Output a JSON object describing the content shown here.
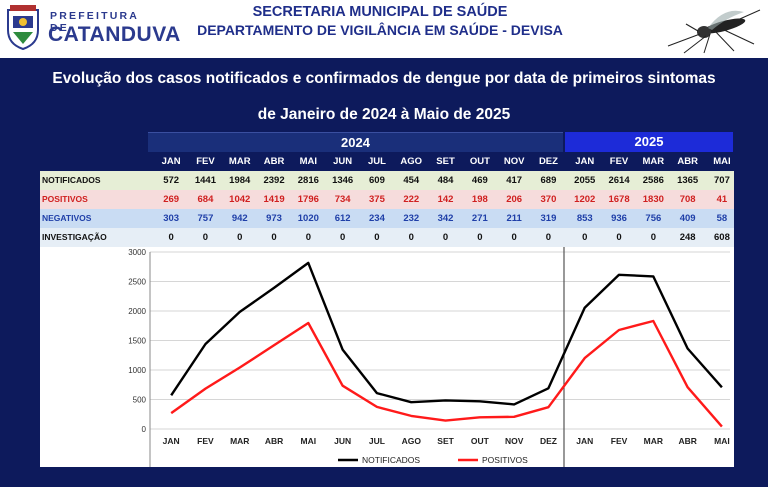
{
  "header": {
    "logo_prefix": "PREFEITURA DE",
    "logo_city": "CATANDUVA",
    "line1": "SECRETARIA MUNICIPAL DE SAÚDE",
    "line2": "DEPARTAMENTO DE VIGILÂNCIA EM SAÚDE - DEVISA"
  },
  "title_line1": "Evolução dos casos notificados e confirmados de dengue por data de primeiros sintomas",
  "title_line2": "de Janeiro de 2024 à Maio de 2025",
  "colors": {
    "panel_bg": "#0d1a5c",
    "year2024_bg": "#1a2f7a",
    "year2025_bg": "#1d2bd8",
    "notificados": "#000000",
    "positivos": "#ff1a1a",
    "negativos_text": "#1f3fa8"
  },
  "table": {
    "years": [
      "2024",
      "2025"
    ],
    "months": [
      "JAN",
      "FEV",
      "MAR",
      "ABR",
      "MAI",
      "JUN",
      "JUL",
      "AGO",
      "SET",
      "OUT",
      "NOV",
      "DEZ",
      "JAN",
      "FEV",
      "MAR",
      "ABR",
      "MAI"
    ],
    "rows": [
      {
        "label": "NOTIFICADOS",
        "values": [
          "572",
          "1441",
          "1984",
          "2392",
          "2816",
          "1346",
          "609",
          "454",
          "484",
          "469",
          "417",
          "689",
          "2055",
          "2614",
          "2586",
          "1365",
          "707"
        ]
      },
      {
        "label": "POSITIVOS",
        "values": [
          "269",
          "684",
          "1042",
          "1419",
          "1796",
          "734",
          "375",
          "222",
          "142",
          "198",
          "206",
          "370",
          "1202",
          "1678",
          "1830",
          "708",
          "41"
        ]
      },
      {
        "label": "NEGATIVOS",
        "values": [
          "303",
          "757",
          "942",
          "973",
          "1020",
          "612",
          "234",
          "232",
          "342",
          "271",
          "211",
          "319",
          "853",
          "936",
          "756",
          "409",
          "58"
        ]
      },
      {
        "label": "INVESTIGAÇÃO",
        "values": [
          "0",
          "0",
          "0",
          "0",
          "0",
          "0",
          "0",
          "0",
          "0",
          "0",
          "0",
          "0",
          "0",
          "0",
          "0",
          "248",
          "608"
        ]
      }
    ]
  },
  "chart_data": {
    "type": "line",
    "categories": [
      "JAN",
      "FEV",
      "MAR",
      "ABR",
      "MAI",
      "JUN",
      "JUL",
      "AGO",
      "SET",
      "OUT",
      "NOV",
      "DEZ",
      "JAN",
      "FEV",
      "MAR",
      "ABR",
      "MAI"
    ],
    "series": [
      {
        "name": "NOTIFICADOS",
        "color": "#000000",
        "values": [
          572,
          1441,
          1984,
          2392,
          2816,
          1346,
          609,
          454,
          484,
          469,
          417,
          689,
          2055,
          2614,
          2586,
          1365,
          707
        ]
      },
      {
        "name": "POSITIVOS",
        "color": "#ff1a1a",
        "values": [
          269,
          684,
          1042,
          1419,
          1796,
          734,
          375,
          222,
          142,
          198,
          206,
          370,
          1202,
          1678,
          1830,
          708,
          41
        ]
      }
    ],
    "yticks": [
      "3000",
      "2500",
      "2000",
      "1500",
      "1000",
      "500",
      "0"
    ],
    "ylim": [
      0,
      3000
    ],
    "grid": true,
    "legend_position": "bottom-center",
    "title": "",
    "xlabel": "",
    "ylabel": ""
  }
}
